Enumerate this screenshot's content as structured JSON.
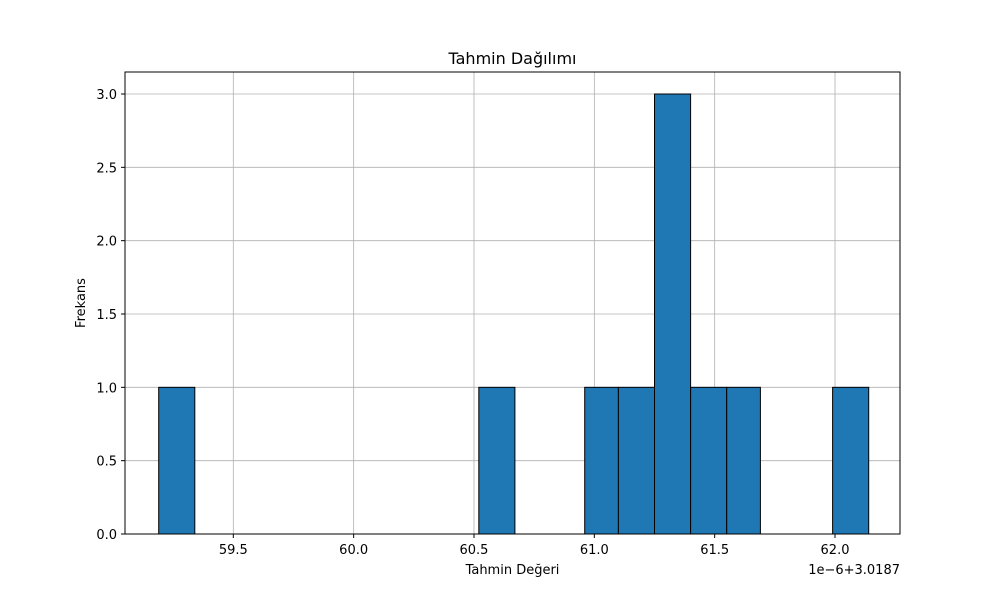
{
  "chart_data": {
    "type": "bar",
    "title": "Tahmin Dağılımı",
    "xlabel": "Tahmin Değeri",
    "ylabel": "Frekans",
    "offset_label": "1e−6+3.0187",
    "grid": true,
    "bar_color": "#1f77b4",
    "edge_color": "#000000",
    "xlim": [
      59.05,
      62.27
    ],
    "ylim": [
      0,
      3.15
    ],
    "xticks": [
      "59.5",
      "60.0",
      "60.5",
      "61.0",
      "61.5",
      "62.0"
    ],
    "xtick_values": [
      59.5,
      60.0,
      60.5,
      61.0,
      61.5,
      62.0
    ],
    "yticks": [
      "0.0",
      "0.5",
      "1.0",
      "1.5",
      "2.0",
      "2.5",
      "3.0"
    ],
    "ytick_values": [
      0.0,
      0.5,
      1.0,
      1.5,
      2.0,
      2.5,
      3.0
    ],
    "bins": [
      {
        "x0": 59.19,
        "x1": 59.34,
        "count": 1
      },
      {
        "x0": 60.52,
        "x1": 60.67,
        "count": 1
      },
      {
        "x0": 60.96,
        "x1": 61.1,
        "count": 1
      },
      {
        "x0": 61.1,
        "x1": 61.25,
        "count": 1
      },
      {
        "x0": 61.25,
        "x1": 61.4,
        "count": 3
      },
      {
        "x0": 61.4,
        "x1": 61.55,
        "count": 1
      },
      {
        "x0": 61.55,
        "x1": 61.69,
        "count": 1
      },
      {
        "x0": 61.99,
        "x1": 62.14,
        "count": 1
      }
    ]
  }
}
